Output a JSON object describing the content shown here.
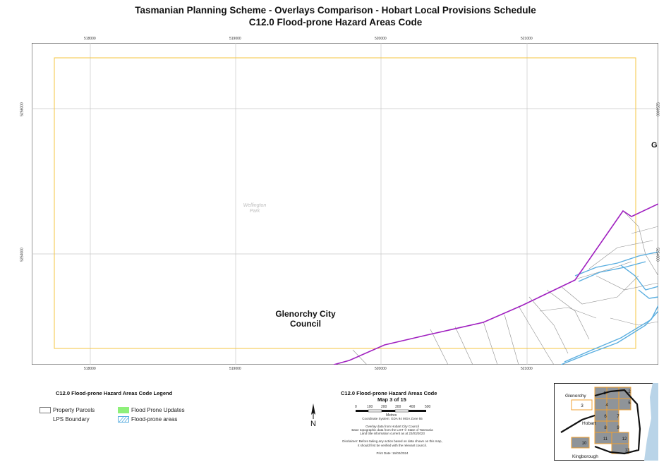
{
  "title": "Tasmanian Planning Scheme - Overlays Comparison - Hobart Local Provisions Schedule",
  "subtitle": "C12.0 Flood-prone Hazard Areas Code",
  "map": {
    "grid_x_labels": [
      "518000",
      "519000",
      "520000",
      "521000"
    ],
    "grid_y_labels": [
      "5256000",
      "5254000"
    ],
    "council_label_line1": "Glenorchy City",
    "council_label_line2": "Council",
    "park_label_line1": "Wellington",
    "park_label_line2": "Park",
    "edge_letter": "G",
    "colors": {
      "boundary": "#a020c0",
      "study_frame": "#f5c542",
      "flood_prone": "#5aaee0",
      "parcels": "#8a8a8a",
      "grid": "#c0c0c0"
    }
  },
  "legend": {
    "title": "C12.0 Flood-prone Hazard Areas Code Legend",
    "items": [
      {
        "label": "Property Parcels",
        "icon": "parcel-swatch"
      },
      {
        "label": "LPS Boundary",
        "icon": "boundary-line"
      },
      {
        "label": "Flood Prone Updates",
        "icon": "green-swatch",
        "color": "#8ef07a"
      },
      {
        "label": "Flood-prone areas",
        "icon": "hatched-swatch",
        "color": "#5aaee0"
      }
    ]
  },
  "info": {
    "title": "C12.0 Flood-prone Hazard Areas Code",
    "map_number": "Map 3 of 15",
    "scale_ticks": [
      "0",
      "100",
      "200",
      "300",
      "400",
      "500"
    ],
    "scale_unit": "Metres",
    "coordinate_system": "Coordinate System: GDA 94 MGA Zone 55",
    "source_1": "Overlay data from Hobart City Council",
    "source_2": "Base topographic data from the LIST © State of Tasmania",
    "source_3": "Land title information current as at 22/03/2023",
    "disclaimer_1": "Disclaimer: Before taking any action based on data shown on this map,",
    "disclaimer_2": "it should first be verified with the relevant council.",
    "print_date": "Print Date: 16/02/2024"
  },
  "inset": {
    "labels": {
      "glenorchy": "Glenorchy",
      "hobart": "Hobart",
      "kingborough": "Kingborough"
    },
    "tiles": [
      "1",
      "2",
      "3",
      "4",
      "5",
      "6",
      "7",
      "8",
      "9",
      "10",
      "11",
      "12",
      "13"
    ],
    "current_tile": "3"
  }
}
